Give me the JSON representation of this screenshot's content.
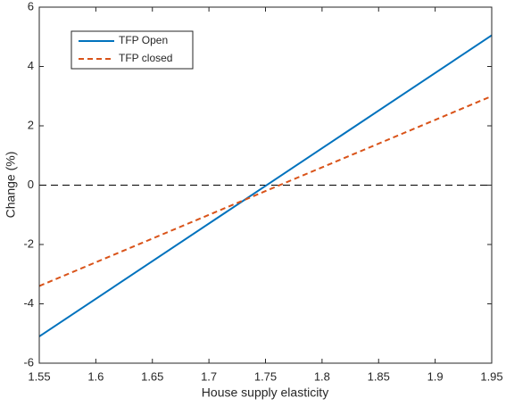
{
  "chart_data": {
    "type": "line",
    "xlabel": "House supply elasticity",
    "ylabel": "Change (%)",
    "x": [
      1.55,
      1.95
    ],
    "series": [
      {
        "name": "TFP Open",
        "color": "#0072bd",
        "dash": "solid",
        "values": [
          -5.1,
          5.05
        ]
      },
      {
        "name": "TFP closed",
        "color": "#d95319",
        "dash": "dashed",
        "values": [
          -3.4,
          3.0
        ]
      }
    ],
    "reference_line": 0,
    "xlim": [
      1.55,
      1.95
    ],
    "xticks": [
      1.55,
      1.6,
      1.65,
      1.7,
      1.75,
      1.8,
      1.85,
      1.9,
      1.95
    ],
    "ylim": [
      -6,
      6
    ],
    "yticks": [
      -6,
      -4,
      -2,
      0,
      2,
      4,
      6
    ],
    "legend": "upper left"
  }
}
